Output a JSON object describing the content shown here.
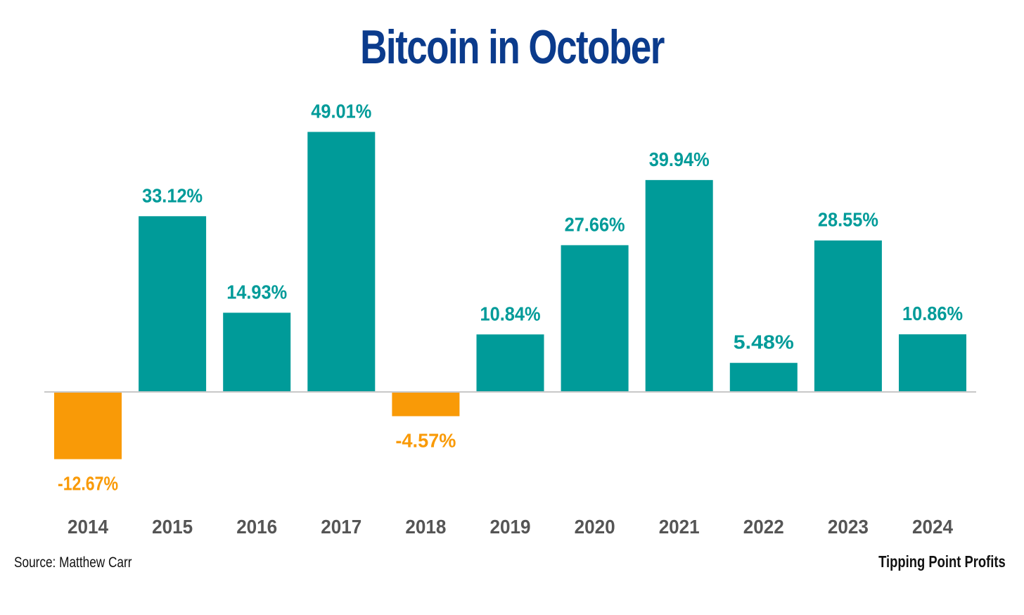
{
  "chart_data": {
    "type": "bar",
    "title": "Bitcoin in October",
    "categories": [
      "2014",
      "2015",
      "2016",
      "2017",
      "2018",
      "2019",
      "2020",
      "2021",
      "2022",
      "2023",
      "2024"
    ],
    "values": [
      -12.67,
      33.12,
      14.93,
      49.01,
      -4.57,
      10.84,
      27.66,
      39.94,
      5.48,
      28.55,
      10.86
    ],
    "value_labels": [
      "-12.67%",
      "33.12%",
      "14.93%",
      "49.01%",
      "-4.57%",
      "10.84%",
      "27.66%",
      "39.94%",
      "5.48%",
      "28.55%",
      "10.86%"
    ],
    "xlabel": "",
    "ylabel": "",
    "ylim": [
      -20,
      55
    ],
    "grid": false,
    "legend": "none"
  },
  "colors": {
    "title": "#0b3b8c",
    "positive": "#009b99",
    "negative": "#f99a07",
    "axis_line": "#c8c8c8",
    "tick_text": "#555555",
    "footer_text": "#111111"
  },
  "footer": {
    "source": "Source: Matthew Carr",
    "brand": "Tipping Point Profits"
  }
}
